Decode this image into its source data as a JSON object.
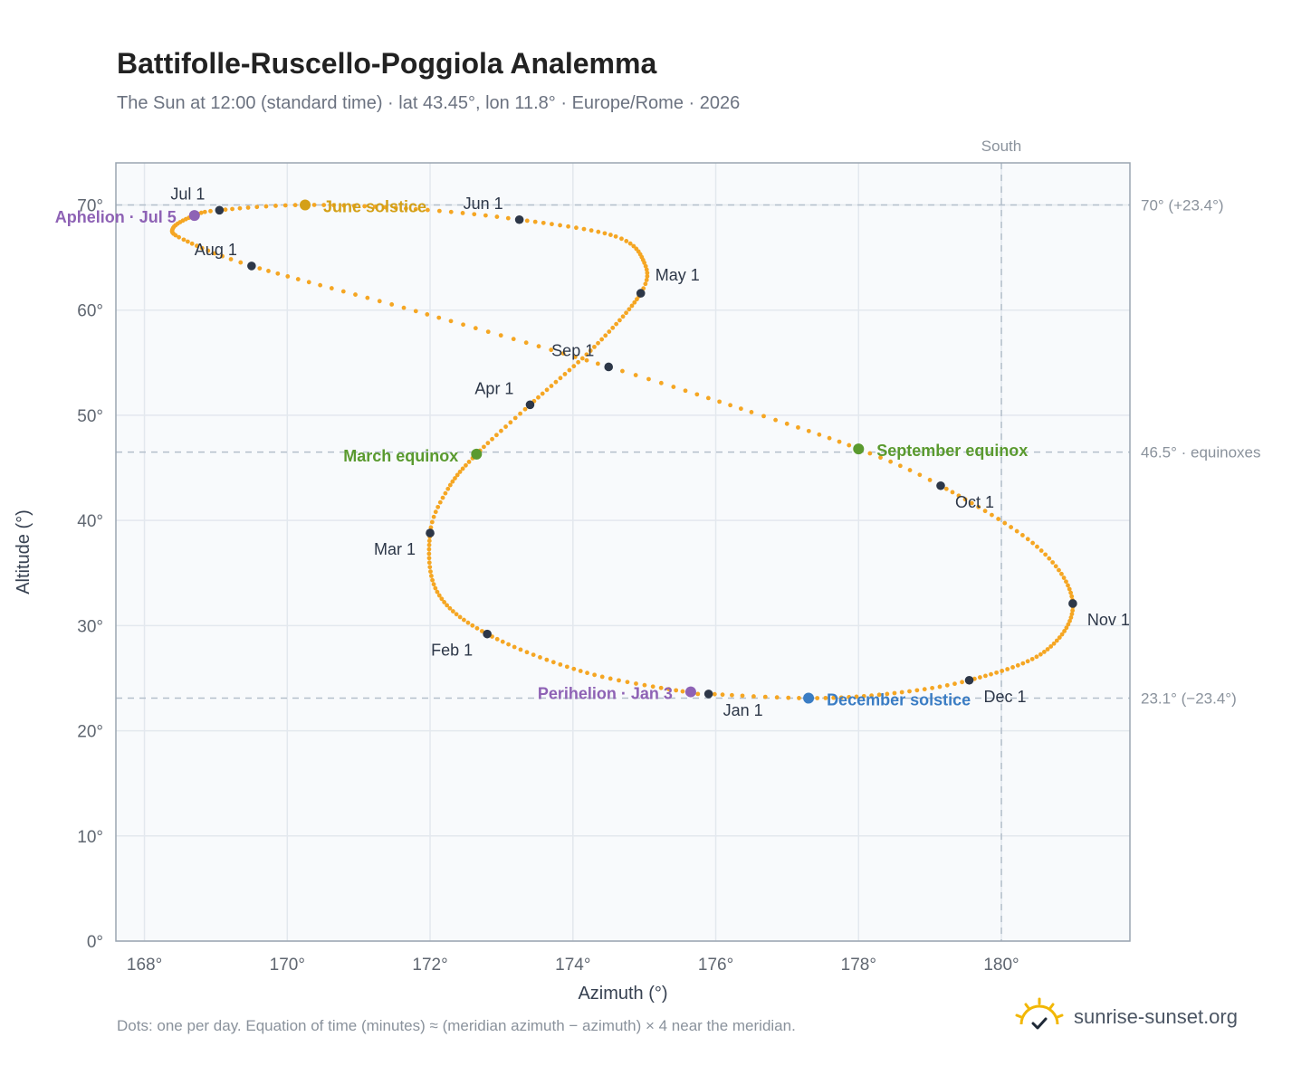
{
  "chart_data": {
    "type": "scatter",
    "title": "Battifolle-Ruscello-Poggiola Analemma",
    "subtitle": "The Sun at 12:00 (standard time) · lat 43.45°, lon 11.8° · Europe/Rome · 2026",
    "xlabel": "Azimuth (°)",
    "ylabel": "Altitude (°)",
    "xlim": [
      167.6,
      181.8
    ],
    "ylim": [
      0,
      74
    ],
    "xticks": [
      168,
      170,
      172,
      174,
      176,
      178,
      180
    ],
    "yticks": [
      0,
      10,
      20,
      30,
      40,
      50,
      60,
      70
    ],
    "x_tick_suffix": "°",
    "y_tick_suffix": "°",
    "grid": true,
    "series": [
      {
        "style": "daily-dots",
        "color": "#f5a623",
        "anchors": [
          {
            "day": 0,
            "az": 175.75,
            "alt": 23.5
          },
          {
            "day": 15,
            "az": 174.2,
            "alt": 25.5
          },
          {
            "day": 31,
            "az": 172.8,
            "alt": 29.2
          },
          {
            "day": 45,
            "az": 172.1,
            "alt": 33.2
          },
          {
            "day": 59,
            "az": 172.0,
            "alt": 38.8
          },
          {
            "day": 68,
            "az": 172.25,
            "alt": 43.0
          },
          {
            "day": 78,
            "az": 172.65,
            "alt": 46.3
          },
          {
            "day": 90,
            "az": 173.4,
            "alt": 51.0
          },
          {
            "day": 105,
            "az": 174.3,
            "alt": 56.5
          },
          {
            "day": 120,
            "az": 174.95,
            "alt": 61.6
          },
          {
            "day": 128,
            "az": 175.0,
            "alt": 64.5
          },
          {
            "day": 138,
            "az": 174.6,
            "alt": 67.0
          },
          {
            "day": 151,
            "az": 173.25,
            "alt": 68.6
          },
          {
            "day": 160,
            "az": 171.8,
            "alt": 69.6
          },
          {
            "day": 171,
            "az": 170.25,
            "alt": 70.0
          },
          {
            "day": 181,
            "az": 169.05,
            "alt": 69.5
          },
          {
            "day": 186,
            "az": 168.7,
            "alt": 69.0
          },
          {
            "day": 195,
            "az": 168.4,
            "alt": 67.8
          },
          {
            "day": 202,
            "az": 168.55,
            "alt": 66.7
          },
          {
            "day": 212,
            "az": 169.5,
            "alt": 64.2
          },
          {
            "day": 227,
            "az": 171.8,
            "alt": 59.9
          },
          {
            "day": 243,
            "az": 174.5,
            "alt": 54.6
          },
          {
            "day": 255,
            "az": 176.5,
            "alt": 50.3
          },
          {
            "day": 265,
            "az": 178.0,
            "alt": 46.8
          },
          {
            "day": 273,
            "az": 179.15,
            "alt": 43.3
          },
          {
            "day": 289,
            "az": 180.5,
            "alt": 37.5
          },
          {
            "day": 304,
            "az": 181.0,
            "alt": 32.1
          },
          {
            "day": 319,
            "az": 180.6,
            "alt": 27.5
          },
          {
            "day": 334,
            "az": 179.55,
            "alt": 24.8
          },
          {
            "day": 345,
            "az": 178.4,
            "alt": 23.5
          },
          {
            "day": 355,
            "az": 177.3,
            "alt": 23.1
          },
          {
            "day": 365,
            "az": 175.9,
            "alt": 23.5
          }
        ]
      }
    ],
    "month_markers": [
      {
        "label": "Jan 1",
        "az": 175.9,
        "alt": 23.5,
        "anchor": "start",
        "dx": 16,
        "dy": 24
      },
      {
        "label": "Feb 1",
        "az": 172.8,
        "alt": 29.2,
        "anchor": "end",
        "dx": -16,
        "dy": 24
      },
      {
        "label": "Mar 1",
        "az": 172.0,
        "alt": 38.8,
        "anchor": "end",
        "dx": -16,
        "dy": 24
      },
      {
        "label": "Apr 1",
        "az": 173.4,
        "alt": 51.0,
        "anchor": "end",
        "dx": -18,
        "dy": -12
      },
      {
        "label": "May 1",
        "az": 174.95,
        "alt": 61.6,
        "anchor": "start",
        "dx": 16,
        "dy": -14
      },
      {
        "label": "Jun 1",
        "az": 173.25,
        "alt": 68.6,
        "anchor": "end",
        "dx": -18,
        "dy": -12
      },
      {
        "label": "Jul 1",
        "az": 169.05,
        "alt": 69.5,
        "anchor": "end",
        "dx": -16,
        "dy": -12
      },
      {
        "label": "Aug 1",
        "az": 169.5,
        "alt": 64.2,
        "anchor": "end",
        "dx": -16,
        "dy": -12
      },
      {
        "label": "Sep 1",
        "az": 174.5,
        "alt": 54.6,
        "anchor": "end",
        "dx": -16,
        "dy": -12
      },
      {
        "label": "Oct 1",
        "az": 179.15,
        "alt": 43.3,
        "anchor": "start",
        "dx": 16,
        "dy": 24
      },
      {
        "label": "Nov 1",
        "az": 181.0,
        "alt": 32.1,
        "anchor": "start",
        "dx": 16,
        "dy": 24
      },
      {
        "label": "Dec 1",
        "az": 179.55,
        "alt": 24.8,
        "anchor": "start",
        "dx": 16,
        "dy": 24
      }
    ],
    "events": [
      {
        "label": "June solstice",
        "az": 170.25,
        "alt": 70.0,
        "color": "#d4a017",
        "anchor": "start",
        "dx": 20,
        "dy": 8
      },
      {
        "label": "December solstice",
        "az": 177.3,
        "alt": 23.1,
        "color": "#3b7dc4",
        "anchor": "start",
        "dx": 20,
        "dy": 8
      },
      {
        "label": "March equinox",
        "az": 172.65,
        "alt": 46.3,
        "color": "#5a9a2f",
        "anchor": "end",
        "dx": -20,
        "dy": 8
      },
      {
        "label": "September equinox",
        "az": 178.0,
        "alt": 46.8,
        "color": "#5a9a2f",
        "anchor": "start",
        "dx": 20,
        "dy": 8
      },
      {
        "label": "Aphelion · Jul 5",
        "az": 168.7,
        "alt": 69.0,
        "color": "#8e62b5",
        "anchor": "end",
        "dx": -20,
        "dy": 8
      },
      {
        "label": "Perihelion · Jan 3",
        "az": 175.65,
        "alt": 23.7,
        "color": "#8e62b5",
        "anchor": "end",
        "dx": -20,
        "dy": 8
      }
    ],
    "reference_lines": [
      {
        "orientation": "horizontal",
        "value": 70.0,
        "label": "70° (+23.4°)"
      },
      {
        "orientation": "horizontal",
        "value": 46.5,
        "label": "46.5° · equinoxes"
      },
      {
        "orientation": "horizontal",
        "value": 23.1,
        "label": "23.1° (−23.4°)"
      },
      {
        "orientation": "vertical",
        "value": 180,
        "label": "South"
      }
    ],
    "colors": {
      "curve": "#f5a623",
      "month_marker": "#2d3748",
      "plot_background": "#f8fafc",
      "grid": "#e3e8ee",
      "frame": "#9aa5b1",
      "reference_line": "#b4bfcb",
      "tick_text": "#5f6670",
      "axis_label": "#374151"
    }
  },
  "footnote": "Dots: one per day. Equation of time (minutes) ≈ (meridian azimuth − azimuth) × 4 near the meridian.",
  "brand": {
    "text": "sunrise-sunset.org",
    "logo_icon": "sunrise-logo-icon"
  }
}
